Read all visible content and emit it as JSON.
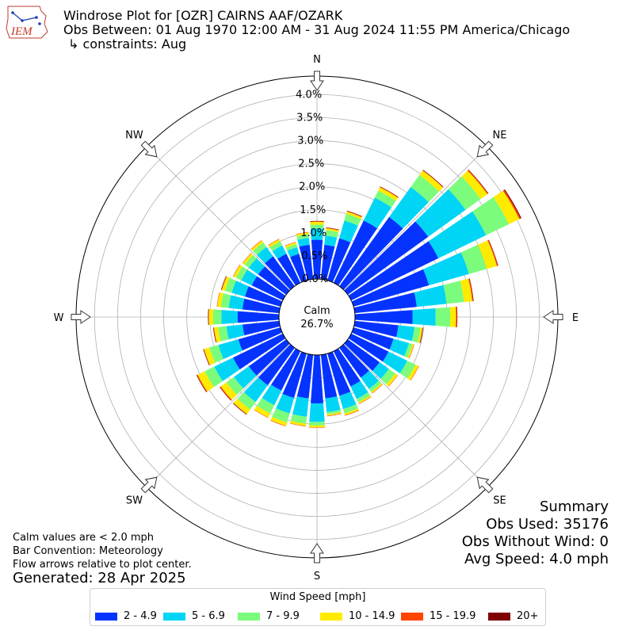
{
  "header": {
    "title_line1": "Windrose Plot for [OZR] CAIRNS AAF/OZARK",
    "title_line2": "Obs Between: 01 Aug 1970 12:00 AM - 31 Aug 2024 11:55 PM America/Chicago",
    "title_line3": "↳ constraints: Aug",
    "logo_text": "IEM"
  },
  "notes": {
    "line1": "Calm values are < 2.0 mph",
    "line2": "Bar Convention: Meteorology",
    "line3": "Flow arrows relative to plot center.",
    "generated": "Generated: 28 Apr 2025"
  },
  "summary": {
    "title": "Summary",
    "obs_used": "Obs Used: 35176",
    "obs_without_wind": "Obs Without Wind: 0",
    "avg_speed": "Avg Speed: 4.0 mph"
  },
  "legend": {
    "title": "Wind Speed [mph]",
    "items": [
      {
        "label": "2 - 4.9",
        "color": "#0433ff"
      },
      {
        "label": "5 - 6.9",
        "color": "#00d5f5"
      },
      {
        "label": "7 - 9.9",
        "color": "#7cfc7c"
      },
      {
        "label": "10 - 14.9",
        "color": "#ffeb00"
      },
      {
        "label": "15 - 19.9",
        "color": "#ff4500"
      },
      {
        "label": "20+",
        "color": "#800000"
      }
    ]
  },
  "chart_data": {
    "type": "windrose",
    "calm_label": "Calm",
    "calm_value": "26.7%",
    "radial_ticks": [
      "0.0%",
      "0.5%",
      "1.0%",
      "1.5%",
      "2.0%",
      "2.5%",
      "3.0%",
      "3.5%",
      "4.0%"
    ],
    "radial_max": 4.4,
    "direction_labels": [
      {
        "label": "N",
        "angle": 0
      },
      {
        "label": "NE",
        "angle": 45
      },
      {
        "label": "E",
        "angle": 90
      },
      {
        "label": "SE",
        "angle": 135
      },
      {
        "label": "S",
        "angle": 180
      },
      {
        "label": "SW",
        "angle": 225
      },
      {
        "label": "W",
        "angle": 270
      },
      {
        "label": "NW",
        "angle": 315
      }
    ],
    "series_names": [
      "2 - 4.9",
      "5 - 6.9",
      "7 - 9.9",
      "10 - 14.9",
      "15 - 19.9",
      "20+"
    ],
    "directions_deg": [
      0,
      10,
      20,
      30,
      40,
      50,
      60,
      70,
      80,
      90,
      100,
      110,
      120,
      130,
      140,
      150,
      160,
      170,
      180,
      190,
      200,
      210,
      220,
      230,
      240,
      250,
      260,
      270,
      280,
      290,
      300,
      310,
      320,
      330,
      340,
      350
    ],
    "cumulative_percent": [
      [
        0.85,
        1.1,
        1.18,
        1.24,
        1.25,
        1.26
      ],
      [
        0.75,
        0.95,
        1.07,
        1.11,
        1.12,
        1.13
      ],
      [
        0.95,
        1.35,
        1.5,
        1.55,
        1.56,
        1.57
      ],
      [
        1.5,
        2.05,
        2.22,
        2.3,
        2.31,
        2.32
      ],
      [
        1.85,
        2.65,
        2.97,
        3.09,
        3.1,
        3.11
      ],
      [
        2.15,
        3.15,
        3.55,
        3.73,
        3.75,
        3.76
      ],
      [
        2.1,
        3.25,
        3.8,
        4.05,
        4.08,
        4.1
      ],
      [
        1.7,
        2.6,
        3.0,
        3.23,
        3.25,
        3.26
      ],
      [
        1.35,
        2.0,
        2.38,
        2.56,
        2.58,
        2.59
      ],
      [
        1.25,
        1.75,
        2.07,
        2.19,
        2.21,
        2.22
      ],
      [
        0.95,
        1.3,
        1.43,
        1.47,
        1.48,
        1.49
      ],
      [
        0.9,
        1.25,
        1.33,
        1.36,
        1.37,
        1.37
      ],
      [
        0.9,
        1.35,
        1.55,
        1.62,
        1.63,
        1.63
      ],
      [
        0.85,
        1.1,
        1.27,
        1.33,
        1.34,
        1.34
      ],
      [
        0.8,
        1.1,
        1.18,
        1.21,
        1.22,
        1.22
      ],
      [
        0.85,
        1.15,
        1.23,
        1.26,
        1.27,
        1.27
      ],
      [
        0.95,
        1.25,
        1.35,
        1.39,
        1.4,
        1.4
      ],
      [
        0.95,
        1.25,
        1.3,
        1.33,
        1.34,
        1.34
      ],
      [
        1.05,
        1.45,
        1.53,
        1.57,
        1.58,
        1.58
      ],
      [
        0.95,
        1.35,
        1.5,
        1.55,
        1.56,
        1.56
      ],
      [
        1.0,
        1.35,
        1.55,
        1.63,
        1.64,
        1.64
      ],
      [
        0.95,
        1.3,
        1.5,
        1.6,
        1.61,
        1.61
      ],
      [
        1.0,
        1.45,
        1.65,
        1.77,
        1.78,
        1.79
      ],
      [
        1.0,
        1.4,
        1.6,
        1.75,
        1.77,
        1.78
      ],
      [
        1.2,
        1.65,
        1.88,
        2.05,
        2.07,
        2.08
      ],
      [
        0.95,
        1.4,
        1.6,
        1.72,
        1.73,
        1.74
      ],
      [
        0.8,
        1.15,
        1.33,
        1.42,
        1.43,
        1.44
      ],
      [
        0.9,
        1.25,
        1.43,
        1.52,
        1.53,
        1.54
      ],
      [
        0.8,
        1.1,
        1.27,
        1.35,
        1.36,
        1.36
      ],
      [
        0.8,
        1.1,
        1.25,
        1.32,
        1.33,
        1.34
      ],
      [
        0.75,
        1.0,
        1.13,
        1.19,
        1.2,
        1.2
      ],
      [
        0.75,
        1.0,
        1.11,
        1.16,
        1.17,
        1.17
      ],
      [
        0.8,
        1.05,
        1.17,
        1.22,
        1.23,
        1.23
      ],
      [
        0.7,
        0.9,
        1.0,
        1.05,
        1.06,
        1.06
      ],
      [
        0.6,
        0.75,
        0.82,
        0.86,
        0.87,
        0.87
      ],
      [
        0.75,
        0.9,
        0.98,
        1.02,
        1.03,
        1.03
      ]
    ]
  }
}
